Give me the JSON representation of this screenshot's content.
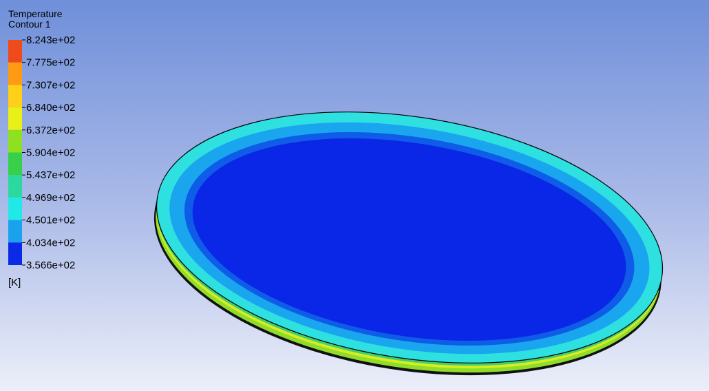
{
  "legend": {
    "title": [
      "Temperature",
      "Contour 1"
    ],
    "ticks": [
      "8.243e+02",
      "7.775e+02",
      "7.307e+02",
      "6.840e+02",
      "6.372e+02",
      "5.904e+02",
      "5.437e+02",
      "4.969e+02",
      "4.501e+02",
      "4.034e+02",
      "3.566e+02"
    ],
    "unit": "[K]"
  }
}
